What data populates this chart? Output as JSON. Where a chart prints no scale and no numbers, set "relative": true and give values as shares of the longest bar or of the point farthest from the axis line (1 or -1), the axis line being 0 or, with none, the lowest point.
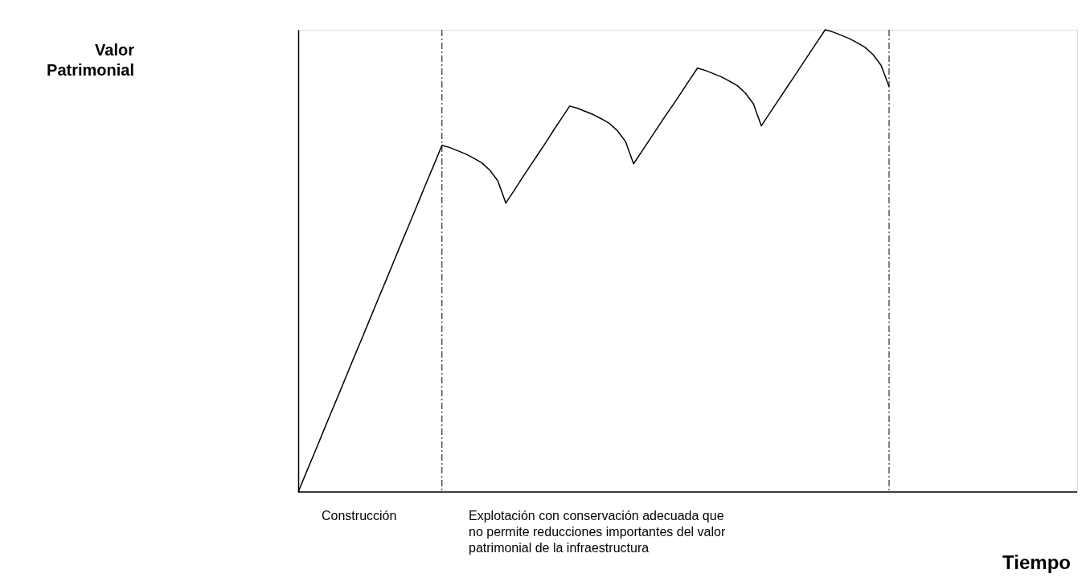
{
  "chart_data": {
    "type": "line",
    "relative": true,
    "grid": false,
    "marker": "none",
    "line_style": "solid",
    "categories": [
      null,
      null,
      null,
      null,
      null,
      null,
      null,
      null,
      null,
      null,
      null,
      null,
      null,
      null,
      null,
      null,
      null,
      null,
      null,
      null,
      null,
      null,
      null,
      null,
      null,
      null,
      null,
      null,
      null,
      null,
      null,
      null,
      null,
      null,
      null,
      null,
      null,
      null,
      null,
      null,
      null,
      null,
      null,
      null,
      null,
      null,
      null,
      null,
      null,
      null,
      null,
      null,
      null,
      null,
      null,
      null,
      null,
      null,
      null,
      null,
      null,
      null,
      null,
      null,
      null,
      null,
      null,
      null,
      null,
      null,
      null,
      null,
      null,
      null,
      null
    ],
    "series": [
      {
        "color": "#000000",
        "values": [
          0,
          0.042,
          0.083,
          0.125,
          0.167,
          0.208,
          0.25,
          0.292,
          0.333,
          0.375,
          0.417,
          0.458,
          0.5,
          0.542,
          0.583,
          0.625,
          0.667,
          0.708,
          0.75,
          0.745,
          0.738,
          0.731,
          0.722,
          0.712,
          0.696,
          0.673,
          0.625,
          0.651,
          0.678,
          0.704,
          0.73,
          0.756,
          0.783,
          0.809,
          0.835,
          0.83,
          0.823,
          0.816,
          0.807,
          0.797,
          0.781,
          0.758,
          0.71,
          0.736,
          0.762,
          0.788,
          0.814,
          0.839,
          0.865,
          0.891,
          0.917,
          0.912,
          0.905,
          0.898,
          0.889,
          0.879,
          0.863,
          0.84,
          0.792,
          0.818,
          0.844,
          0.87,
          0.896,
          0.922,
          0.948,
          0.974,
          1.0,
          0.995,
          0.988,
          0.981,
          0.972,
          0.962,
          0.946,
          0.923,
          0.877
        ]
      }
    ],
    "annotations": [
      "Valor\nPatrimonial",
      "Construcción",
      "Explotación con conservación adecuada que\nno permite reducciones importantes del valor\npatrimonial de la infraestructura",
      "Tiempo"
    ]
  }
}
